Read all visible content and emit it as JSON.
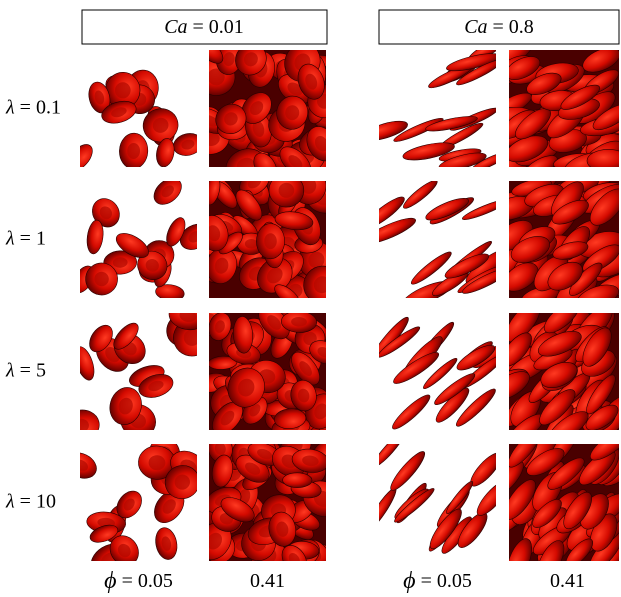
{
  "column_headers": [
    {
      "symbol": "Ca",
      "text": "= 0.01"
    },
    {
      "symbol": "Ca",
      "text": "= 0.8"
    }
  ],
  "row_labels": [
    {
      "symbol": "λ",
      "text": "= 0.1"
    },
    {
      "symbol": "λ",
      "text": "= 1"
    },
    {
      "symbol": "λ",
      "text": "= 5"
    },
    {
      "symbol": "λ",
      "text": "= 10"
    }
  ],
  "column_labels": [
    {
      "symbol": "ϕ",
      "text": "= 0.05"
    },
    {
      "text": "0.41"
    },
    {
      "symbol": "ϕ",
      "text": "= 0.05"
    },
    {
      "text": "0.41"
    }
  ]
}
